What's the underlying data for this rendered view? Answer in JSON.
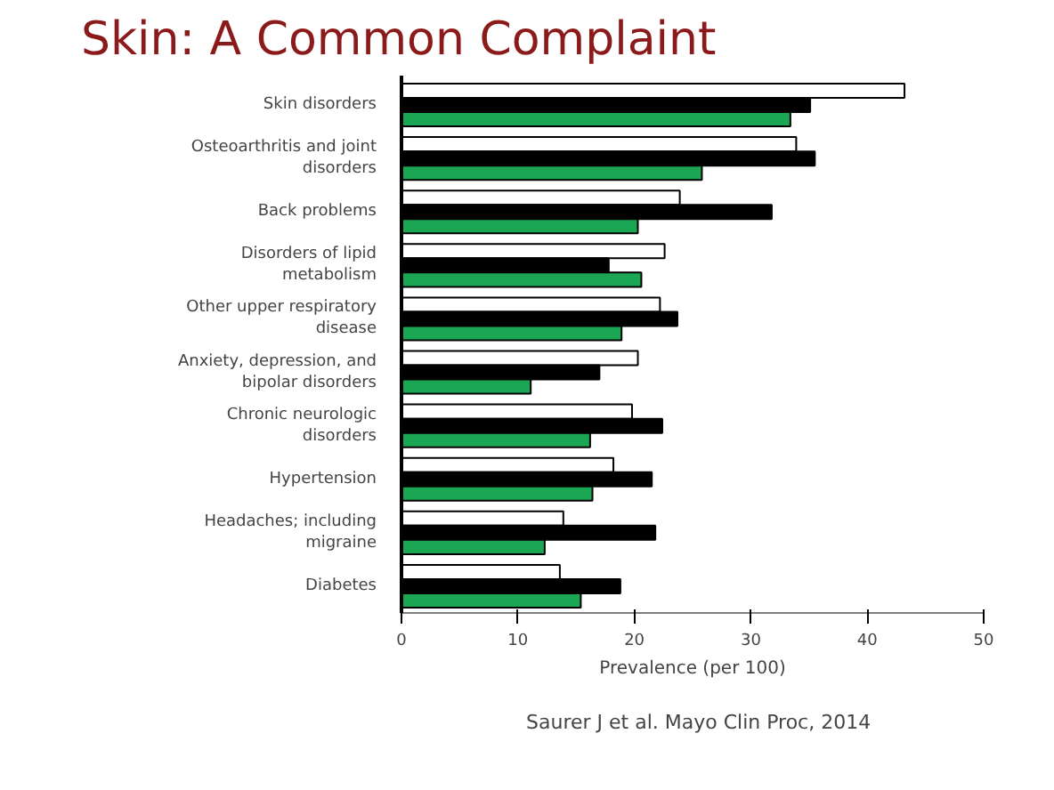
{
  "chart_data": {
    "type": "bar",
    "orientation": "horizontal",
    "title": "Skin: A Common Complaint",
    "xlabel": "Prevalence (per 100)",
    "categories": [
      "Skin disorders",
      "Osteoarthritis and joint disorders",
      "Back problems",
      "Disorders of lipid metabolism",
      "Other upper respiratory disease",
      "Anxiety, depression, and bipolar disorders",
      "Chronic neurologic disorders",
      "Hypertension",
      "Headaches; including migraine",
      "Diabetes"
    ],
    "series": [
      {
        "color": "#ffffff",
        "values": [
          43.2,
          33.9,
          23.9,
          22.6,
          22.2,
          20.3,
          19.8,
          18.2,
          13.9,
          13.6
        ]
      },
      {
        "color": "#000000",
        "values": [
          35.1,
          35.5,
          31.8,
          17.8,
          23.7,
          17.0,
          22.4,
          21.5,
          21.8,
          18.8
        ]
      },
      {
        "color": "#1aa653",
        "values": [
          33.4,
          25.8,
          20.3,
          20.6,
          18.9,
          11.1,
          16.2,
          16.4,
          12.3,
          15.4
        ]
      }
    ],
    "xlim": [
      0,
      50
    ],
    "xticks": [
      0,
      10,
      20,
      30,
      40,
      50
    ],
    "grid": false,
    "annotations": [
      "Saurer J et al. Mayo Clin Proc, 2014"
    ]
  }
}
